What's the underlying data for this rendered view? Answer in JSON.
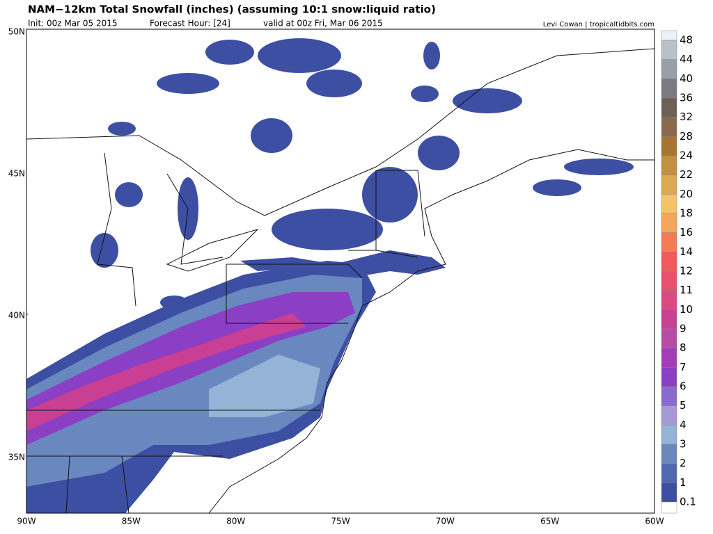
{
  "header": {
    "title": "NAM−12km Total Snowfall (inches) (assuming 10:1 snow:liquid ratio)",
    "init": "Init: 00z Mar 05 2015",
    "forecast_hour": "Forecast Hour: [24]",
    "valid": "valid at 00z Fri, Mar 06 2015",
    "credit": "Levi Cowan | tropicaltidbits.com"
  },
  "axes": {
    "lat_labels": [
      "50N",
      "45N",
      "40N",
      "35N"
    ],
    "lon_labels": [
      "90W",
      "85W",
      "80W",
      "75W",
      "70W",
      "65W",
      "60W"
    ]
  },
  "colorbar": {
    "labels": [
      "48",
      "44",
      "40",
      "36",
      "32",
      "28",
      "24",
      "22",
      "20",
      "18",
      "16",
      "14",
      "12",
      "11",
      "10",
      "9",
      "8",
      "7",
      "6",
      "5",
      "4",
      "3",
      "2",
      "1",
      "0.1"
    ],
    "colors": [
      "#d8e0e8",
      "#b8c0c8",
      "#9a9ea8",
      "#7a7a80",
      "#6e6055",
      "#8a6a4a",
      "#a87530",
      "#c48f40",
      "#dca850",
      "#f5c265",
      "#f7a55a",
      "#f57a55",
      "#f05a5a",
      "#e8506e",
      "#d94a80",
      "#c83f94",
      "#b84aa6",
      "#a33cb8",
      "#8a3fc4",
      "#8a6acd",
      "#a59ad6",
      "#95b3d6",
      "#6a88c0",
      "#5068b0",
      "#3d4fa3"
    ]
  }
}
